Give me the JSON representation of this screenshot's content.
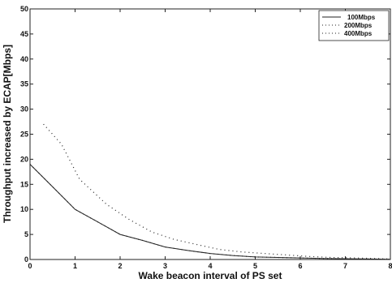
{
  "chart_data": {
    "type": "line",
    "title": "",
    "xlabel": "Wake beacon interval of PS set",
    "ylabel": "Throughput increased by ECAP[Mbps]",
    "xlim": [
      0,
      8
    ],
    "ylim": [
      0,
      50
    ],
    "xticks": [
      0,
      1,
      2,
      3,
      4,
      5,
      6,
      7,
      8
    ],
    "yticks": [
      0,
      5,
      10,
      15,
      20,
      25,
      30,
      35,
      40,
      45,
      50
    ],
    "grid": false,
    "legend_position": "top-right",
    "series": [
      {
        "name": "100Mbps",
        "style": "solid",
        "color": "#222222",
        "x": [
          0,
          0.5,
          1,
          1.5,
          2,
          2.5,
          3,
          3.5,
          4,
          4.5,
          5,
          5.5,
          6,
          6.5,
          7,
          7.5,
          8
        ],
        "y": [
          19,
          14.5,
          10,
          7.5,
          5,
          3.8,
          2.5,
          1.8,
          1.2,
          0.8,
          0.5,
          0.4,
          0.3,
          0.2,
          0.15,
          0.1,
          0.05
        ]
      },
      {
        "name": "200Mbps",
        "style": "dotted",
        "color": "#222222",
        "x": [
          0,
          0.5,
          1,
          1.5,
          2,
          2.5,
          3,
          3.5,
          4,
          4.5,
          5,
          5.5,
          6,
          6.5,
          7,
          7.5,
          8
        ],
        "y": [
          19,
          14.5,
          10,
          7.5,
          5,
          3.8,
          2.5,
          1.8,
          1.2,
          0.8,
          0.5,
          0.4,
          0.3,
          0.2,
          0.15,
          0.1,
          0.05
        ]
      },
      {
        "name": "400Mbps",
        "style": "dotted",
        "color": "#222222",
        "x": [
          0.3,
          0.7,
          1.1,
          1.7,
          2.2,
          2.7,
          3.2,
          3.7,
          4.2,
          4.7,
          5.2,
          5.7,
          6.2,
          6.7,
          7.2,
          7.7,
          8
        ],
        "y": [
          27,
          23,
          16,
          11,
          8,
          5.5,
          4,
          3,
          2,
          1.5,
          1.2,
          0.9,
          0.6,
          0.4,
          0.3,
          0.2,
          0.1
        ]
      }
    ]
  }
}
